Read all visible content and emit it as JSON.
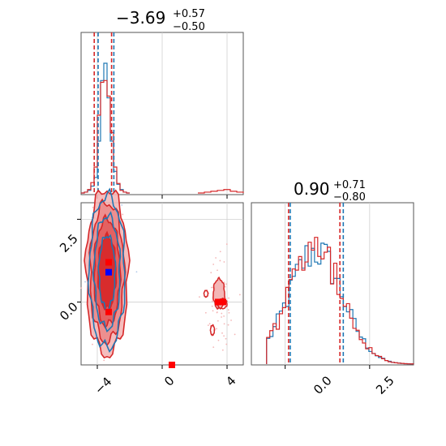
{
  "chart_data": [
    {
      "type": "histogram",
      "panel": "top-left",
      "title": {
        "value": "−3.69",
        "sup": "+0.57",
        "sub": "−0.50"
      },
      "xlim": [
        -5,
        5
      ],
      "grid": true,
      "series": [
        {
          "color": "#1f77b4",
          "bins_x": [
            -5.0,
            -4.8,
            -4.6,
            -4.4,
            -4.2,
            -4.0,
            -3.8,
            -3.6,
            -3.4,
            -3.2,
            -3.0,
            -2.8,
            -2.6,
            -2.4,
            -2.2,
            -2.0
          ],
          "counts": [
            0,
            1,
            3,
            8,
            18,
            60,
            130,
            150,
            110,
            60,
            25,
            10,
            4,
            1,
            0
          ]
        },
        {
          "color": "#d62728",
          "bins_x": [
            -5.0,
            -4.8,
            -4.6,
            -4.4,
            -4.2,
            -4.0,
            -3.8,
            -3.6,
            -3.4,
            -3.2,
            -3.0,
            -2.8,
            -2.6,
            -2.4,
            -2.2,
            -2.0
          ],
          "counts": [
            0,
            1,
            4,
            12,
            30,
            90,
            128,
            130,
            112,
            70,
            30,
            11,
            3,
            1,
            0
          ]
        },
        {
          "color": "#d62728",
          "bins_x": [
            2.2,
            2.6,
            3.0,
            3.4,
            3.8,
            4.2,
            4.6,
            5.0
          ],
          "counts": [
            0,
            1,
            2,
            3,
            4,
            2,
            1
          ]
        }
      ],
      "quantile_lines": [
        {
          "x": -4.19,
          "color": "#d62728"
        },
        {
          "x": -3.95,
          "color": "#1f77b4"
        },
        {
          "x": -3.12,
          "color": "#d62728"
        },
        {
          "x": -2.98,
          "color": "#1f77b4"
        }
      ]
    },
    {
      "type": "contour-scatter",
      "panel": "bottom-left",
      "xlim": [
        -5,
        5
      ],
      "ylim": [
        -1.9,
        3.0
      ],
      "xticks": [
        "−4",
        "0",
        "4"
      ],
      "yticks": [
        "0.0",
        "2.5"
      ],
      "grid": true,
      "markers": [
        {
          "x": -3.3,
          "y": 1.2,
          "color": "#ff0000"
        },
        {
          "x": -3.3,
          "y": 0.9,
          "color": "#0000ff"
        },
        {
          "x": -3.3,
          "y": -0.3,
          "color": "#ff0000"
        },
        {
          "x": 0.6,
          "y": -1.9,
          "color": "#ff0000"
        },
        {
          "x": 3.6,
          "y": 0.0,
          "color": "#ff0000"
        }
      ],
      "contours": [
        {
          "color": "#d62728",
          "cx": -3.4,
          "cy": 0.9,
          "rx": 1.3,
          "ry": 2.5,
          "fill": "#f4b6b6"
        },
        {
          "color": "#d62728",
          "cx": -3.4,
          "cy": 0.9,
          "rx": 1.05,
          "ry": 2.1,
          "fill": "#ec8a8a"
        },
        {
          "color": "#d62728",
          "cx": -3.4,
          "cy": 0.9,
          "rx": 0.8,
          "ry": 1.6,
          "fill": "#e25c5c"
        },
        {
          "color": "#d62728",
          "cx": -3.4,
          "cy": 0.9,
          "rx": 0.55,
          "ry": 1.1,
          "fill": "#d62728"
        },
        {
          "color": "#1f77b4",
          "cx": -3.4,
          "cy": 0.9,
          "rx": 1.1,
          "ry": 2.3,
          "fill": "none"
        },
        {
          "color": "#1f77b4",
          "cx": -3.4,
          "cy": 0.9,
          "rx": 0.8,
          "ry": 1.7,
          "fill": "none"
        },
        {
          "color": "#1f77b4",
          "cx": -3.4,
          "cy": 0.9,
          "rx": 0.5,
          "ry": 1.1,
          "fill": "none"
        }
      ]
    },
    {
      "type": "histogram",
      "panel": "bottom-right",
      "title": {
        "value": "0.90",
        "sup": "+0.71",
        "sub": "−0.80"
      },
      "xlim": [
        -1.0,
        3.8
      ],
      "xticks": [
        "0.0",
        "2.5"
      ],
      "grid": true,
      "quantile_lines": [
        {
          "x": 0.1,
          "color": "#d62728"
        },
        {
          "x": 0.15,
          "color": "#1f77b4"
        },
        {
          "x": 1.62,
          "color": "#d62728"
        },
        {
          "x": 1.72,
          "color": "#1f77b4"
        }
      ]
    }
  ],
  "colors": {
    "blue": "#1f77b4",
    "red": "#d62728"
  }
}
